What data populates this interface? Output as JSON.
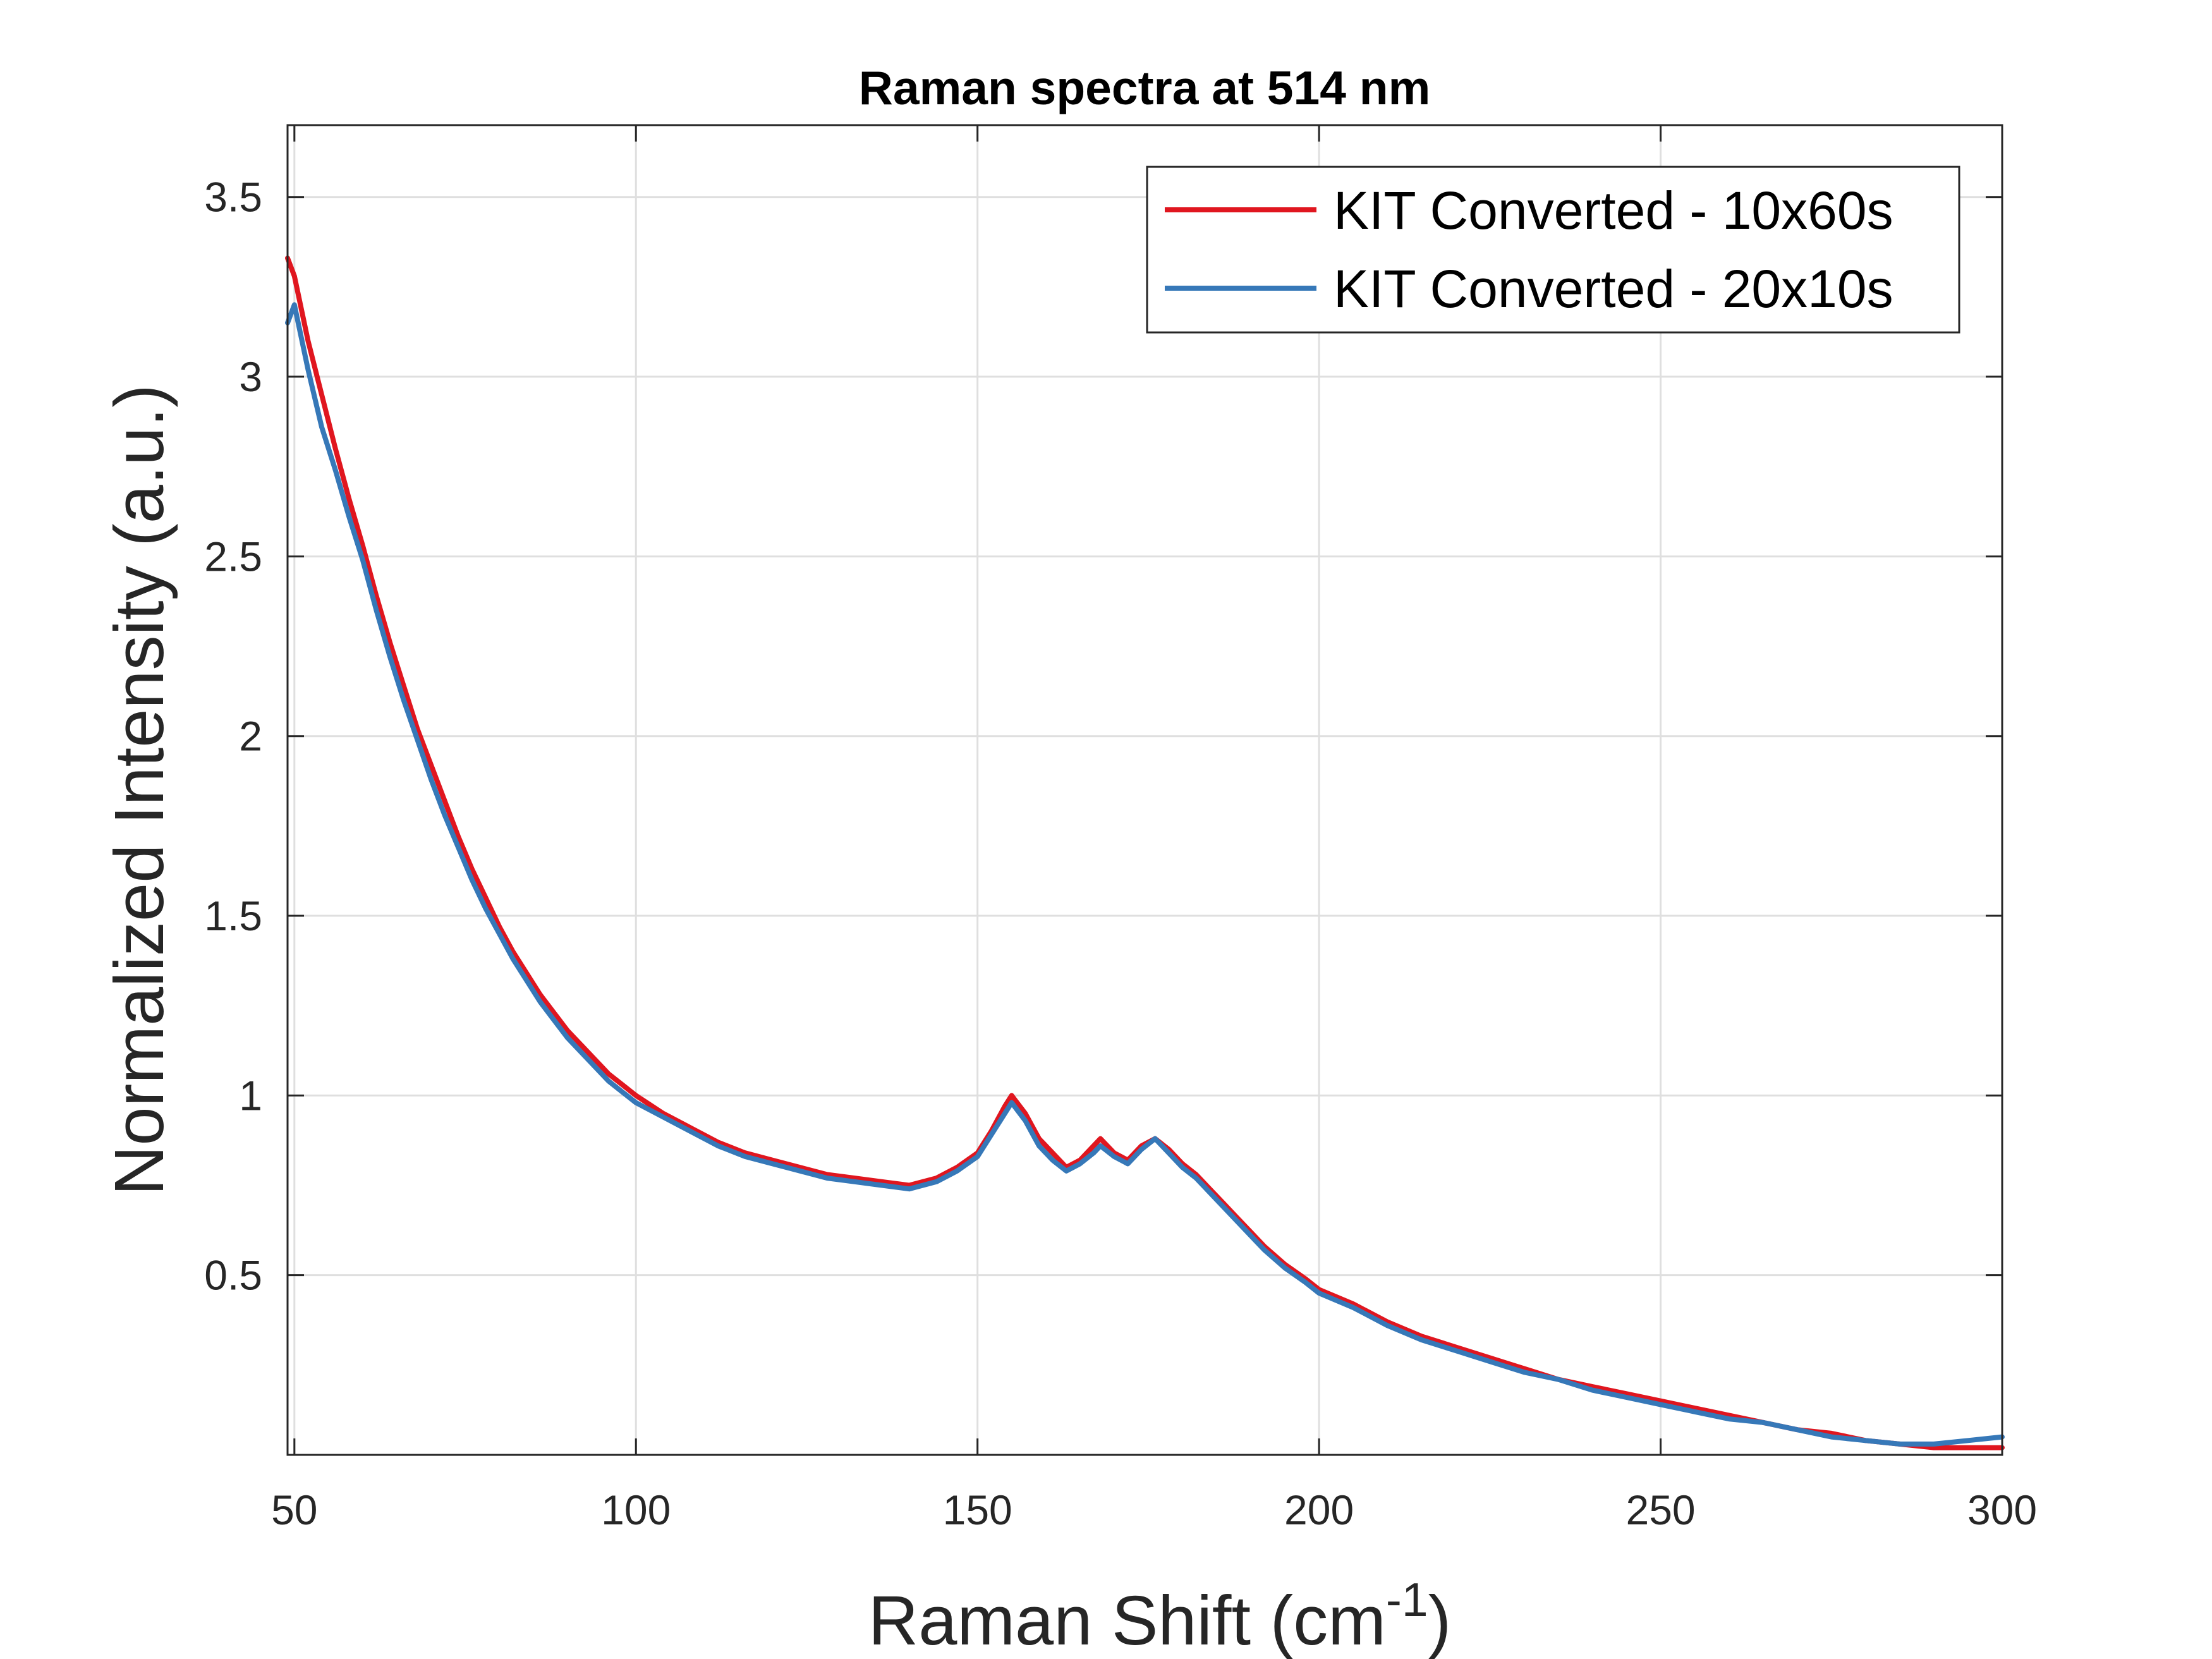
{
  "chart_data": {
    "type": "line",
    "title": "Raman spectra at 514 nm",
    "xlabel": {
      "main": "Raman Shift (cm",
      "sup": "-1",
      "close": ")"
    },
    "ylabel": "Normalized Intensity (a.u.)",
    "xlim": [
      49,
      300
    ],
    "ylim": [
      0,
      3.7
    ],
    "xticks": [
      50,
      100,
      150,
      200,
      250,
      300
    ],
    "yticks": [
      0.5,
      1,
      1.5,
      2,
      2.5,
      3,
      3.5
    ],
    "xtick_labels": [
      "50",
      "100",
      "150",
      "200",
      "250",
      "300"
    ],
    "ytick_labels": [
      "0.5",
      "1",
      "1.5",
      "2",
      "2.5",
      "3",
      "3.5"
    ],
    "grid": true,
    "legend_position": "top-right",
    "series": [
      {
        "name": "KIT Converted - 10x60s",
        "color": "#e0161f",
        "x": [
          49,
          50,
          52,
          54,
          56,
          58,
          60,
          62,
          64,
          66,
          68,
          70,
          72,
          74,
          76,
          78,
          80,
          82,
          84,
          86,
          88,
          90,
          92,
          94,
          96,
          98,
          100,
          104,
          108,
          112,
          116,
          120,
          124,
          128,
          132,
          136,
          140,
          144,
          147,
          150,
          152,
          154,
          155,
          157,
          159,
          161,
          163,
          165,
          167,
          168,
          170,
          172,
          174,
          176,
          178,
          180,
          182,
          184,
          186,
          188,
          190,
          192,
          195,
          198,
          200,
          205,
          210,
          215,
          220,
          225,
          230,
          235,
          240,
          245,
          250,
          255,
          260,
          265,
          270,
          275,
          280,
          285,
          290,
          295,
          300
        ],
        "y": [
          3.33,
          3.28,
          3.1,
          2.95,
          2.8,
          2.66,
          2.53,
          2.39,
          2.26,
          2.14,
          2.02,
          1.92,
          1.82,
          1.72,
          1.63,
          1.55,
          1.47,
          1.4,
          1.34,
          1.28,
          1.23,
          1.18,
          1.14,
          1.1,
          1.06,
          1.03,
          1.0,
          0.95,
          0.91,
          0.87,
          0.84,
          0.82,
          0.8,
          0.78,
          0.77,
          0.76,
          0.75,
          0.77,
          0.8,
          0.84,
          0.9,
          0.97,
          1.0,
          0.95,
          0.88,
          0.84,
          0.8,
          0.82,
          0.86,
          0.88,
          0.84,
          0.82,
          0.86,
          0.88,
          0.85,
          0.81,
          0.78,
          0.74,
          0.7,
          0.66,
          0.62,
          0.58,
          0.53,
          0.49,
          0.46,
          0.42,
          0.37,
          0.33,
          0.3,
          0.27,
          0.24,
          0.21,
          0.19,
          0.17,
          0.15,
          0.13,
          0.11,
          0.09,
          0.07,
          0.06,
          0.04,
          0.03,
          0.02,
          0.02,
          0.02
        ]
      },
      {
        "name": "KIT Converted - 20x10s",
        "color": "#3678b8",
        "x": [
          49,
          50,
          52,
          54,
          56,
          58,
          60,
          62,
          64,
          66,
          68,
          70,
          72,
          74,
          76,
          78,
          80,
          82,
          84,
          86,
          88,
          90,
          92,
          94,
          96,
          98,
          100,
          104,
          108,
          112,
          116,
          120,
          124,
          128,
          132,
          136,
          140,
          144,
          147,
          150,
          152,
          154,
          155,
          157,
          159,
          161,
          163,
          165,
          167,
          168,
          170,
          172,
          174,
          176,
          178,
          180,
          182,
          184,
          186,
          188,
          190,
          192,
          195,
          198,
          200,
          205,
          210,
          215,
          220,
          225,
          230,
          235,
          240,
          245,
          250,
          255,
          260,
          265,
          270,
          275,
          280,
          285,
          290,
          295,
          300
        ],
        "y": [
          3.15,
          3.2,
          3.02,
          2.86,
          2.74,
          2.61,
          2.49,
          2.35,
          2.22,
          2.1,
          1.99,
          1.88,
          1.78,
          1.69,
          1.6,
          1.52,
          1.45,
          1.38,
          1.32,
          1.26,
          1.21,
          1.16,
          1.12,
          1.08,
          1.04,
          1.01,
          0.98,
          0.94,
          0.9,
          0.86,
          0.83,
          0.81,
          0.79,
          0.77,
          0.76,
          0.75,
          0.74,
          0.76,
          0.79,
          0.83,
          0.89,
          0.95,
          0.98,
          0.93,
          0.86,
          0.82,
          0.79,
          0.81,
          0.84,
          0.86,
          0.83,
          0.81,
          0.85,
          0.88,
          0.84,
          0.8,
          0.77,
          0.73,
          0.69,
          0.65,
          0.61,
          0.57,
          0.52,
          0.48,
          0.45,
          0.41,
          0.36,
          0.32,
          0.29,
          0.26,
          0.23,
          0.21,
          0.18,
          0.16,
          0.14,
          0.12,
          0.1,
          0.09,
          0.07,
          0.05,
          0.04,
          0.03,
          0.03,
          0.04,
          0.05
        ]
      }
    ]
  }
}
